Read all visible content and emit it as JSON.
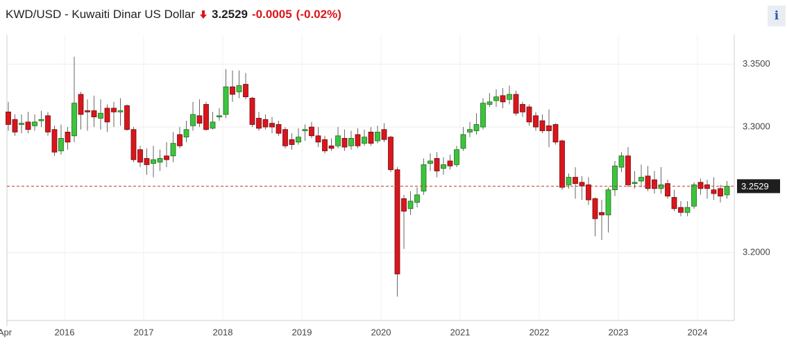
{
  "chart_data": {
    "type": "candlestick",
    "title": "KWD/USD - Kuwaiti Dinar US Dollar",
    "last_price": 3.2529,
    "change": -0.0005,
    "change_percent_label": "(-0.02%)",
    "info_button": "i",
    "up_color": "#3dc43d",
    "down_color": "#d9161c",
    "grid": true,
    "ylim": [
      3.146,
      3.3735
    ],
    "yticks": [
      {
        "value": 3.2,
        "label": "3.2000"
      },
      {
        "value": 3.3,
        "label": "3.3000"
      },
      {
        "value": 3.35,
        "label": "3.3500"
      }
    ],
    "categories": [
      "Apr",
      null,
      null,
      null,
      null,
      null,
      null,
      null,
      null,
      "2016",
      null,
      null,
      null,
      null,
      null,
      null,
      null,
      null,
      null,
      null,
      null,
      "2017",
      null,
      null,
      null,
      null,
      null,
      null,
      null,
      null,
      null,
      null,
      null,
      "2018",
      null,
      null,
      null,
      null,
      null,
      null,
      null,
      null,
      null,
      null,
      null,
      "2019",
      null,
      null,
      null,
      null,
      null,
      null,
      null,
      null,
      null,
      null,
      null,
      "2020",
      null,
      null,
      null,
      null,
      null,
      null,
      null,
      null,
      null,
      null,
      null,
      "2021",
      null,
      null,
      null,
      null,
      null,
      null,
      null,
      null,
      null,
      null,
      null,
      "2022",
      null,
      null,
      null,
      null,
      null,
      null,
      null,
      null,
      null,
      null,
      null,
      "2023",
      null,
      null,
      null,
      null,
      null,
      null,
      null,
      null,
      null,
      null,
      null,
      "2024",
      null,
      null,
      null,
      null
    ],
    "open": [
      3.312,
      3.306,
      3.302,
      3.304,
      3.301,
      3.305,
      3.309,
      3.298,
      3.281,
      3.296,
      3.293,
      3.326,
      3.313,
      3.313,
      3.307,
      3.315,
      3.315,
      3.312,
      3.317,
      3.298,
      3.282,
      3.275,
      3.271,
      3.272,
      3.277,
      3.277,
      3.294,
      3.292,
      3.301,
      3.309,
      3.318,
      3.299,
      3.308,
      3.31,
      3.332,
      3.328,
      3.334,
      3.323,
      3.307,
      3.306,
      3.303,
      3.302,
      3.298,
      3.29,
      3.288,
      3.297,
      3.3,
      3.293,
      3.29,
      3.285,
      3.285,
      3.291,
      3.285,
      3.294,
      3.287,
      3.296,
      3.289,
      3.298,
      3.292,
      3.266,
      3.243,
      3.235,
      3.24,
      3.249,
      3.271,
      3.275,
      3.267,
      3.273,
      3.27,
      3.283,
      3.296,
      3.297,
      3.3,
      3.318,
      3.321,
      3.325,
      3.322,
      3.326,
      3.318,
      3.316,
      3.309,
      3.305,
      3.301,
      3.302,
      3.289,
      3.254,
      3.26,
      3.256,
      3.254,
      3.243,
      3.232,
      3.23,
      3.25,
      3.268,
      3.277,
      3.255,
      3.257,
      3.261,
      3.258,
      3.251,
      3.255,
      3.244,
      3.236,
      3.232,
      3.237,
      3.256,
      3.254,
      3.25,
      3.251,
      3.246
    ],
    "high": [
      3.32,
      3.31,
      3.31,
      3.312,
      3.31,
      3.313,
      3.312,
      3.301,
      3.302,
      3.3,
      3.356,
      3.328,
      3.322,
      3.325,
      3.322,
      3.318,
      3.32,
      3.323,
      3.318,
      3.3,
      3.285,
      3.283,
      3.285,
      3.282,
      3.288,
      3.296,
      3.3,
      3.305,
      3.32,
      3.322,
      3.32,
      3.312,
      3.315,
      3.346,
      3.345,
      3.345,
      3.343,
      3.324,
      3.312,
      3.31,
      3.308,
      3.305,
      3.3,
      3.295,
      3.299,
      3.302,
      3.304,
      3.3,
      3.293,
      3.291,
      3.3,
      3.298,
      3.297,
      3.299,
      3.298,
      3.3,
      3.301,
      3.303,
      3.293,
      3.268,
      3.246,
      3.249,
      3.252,
      3.275,
      3.279,
      3.28,
      3.276,
      3.278,
      3.285,
      3.3,
      3.304,
      3.311,
      3.323,
      3.327,
      3.33,
      3.331,
      3.333,
      3.329,
      3.32,
      3.318,
      3.312,
      3.31,
      3.314,
      3.303,
      3.29,
      3.263,
      3.268,
      3.261,
      3.26,
      3.244,
      3.242,
      3.252,
      3.273,
      3.28,
      3.284,
      3.265,
      3.27,
      3.269,
      3.265,
      3.268,
      3.258,
      3.25,
      3.241,
      3.241,
      3.256,
      3.259,
      3.258,
      3.26,
      3.254,
      3.257
    ],
    "low": [
      3.297,
      3.293,
      3.295,
      3.295,
      3.297,
      3.3,
      3.293,
      3.277,
      3.278,
      3.282,
      3.288,
      3.298,
      3.297,
      3.3,
      3.298,
      3.296,
      3.3,
      3.301,
      3.297,
      3.272,
      3.268,
      3.262,
      3.26,
      3.265,
      3.268,
      3.272,
      3.283,
      3.288,
      3.297,
      3.3,
      3.297,
      3.298,
      3.305,
      3.307,
      3.32,
      3.323,
      3.322,
      3.3,
      3.297,
      3.298,
      3.295,
      3.293,
      3.283,
      3.282,
      3.286,
      3.289,
      3.291,
      3.284,
      3.279,
      3.281,
      3.283,
      3.281,
      3.282,
      3.283,
      3.285,
      3.285,
      3.287,
      3.288,
      3.264,
      3.165,
      3.203,
      3.23,
      3.236,
      3.246,
      3.265,
      3.26,
      3.262,
      3.266,
      3.268,
      3.281,
      3.292,
      3.294,
      3.298,
      3.316,
      3.316,
      3.315,
      3.318,
      3.309,
      3.308,
      3.301,
      3.297,
      3.295,
      3.284,
      3.286,
      3.25,
      3.251,
      3.243,
      3.242,
      3.238,
      3.213,
      3.21,
      3.216,
      3.245,
      3.264,
      3.252,
      3.251,
      3.252,
      3.249,
      3.247,
      3.247,
      3.243,
      3.233,
      3.229,
      3.229,
      3.235,
      3.246,
      3.243,
      3.242,
      3.24,
      3.243
    ],
    "close": [
      3.302,
      3.296,
      3.303,
      3.298,
      3.304,
      3.306,
      3.296,
      3.28,
      3.291,
      3.288,
      3.319,
      3.31,
      3.312,
      3.308,
      3.311,
      3.304,
      3.312,
      3.313,
      3.298,
      3.274,
      3.272,
      3.27,
      3.274,
      3.275,
      3.274,
      3.287,
      3.285,
      3.298,
      3.31,
      3.303,
      3.298,
      3.304,
      3.309,
      3.332,
      3.326,
      3.333,
      3.324,
      3.302,
      3.299,
      3.3,
      3.3,
      3.295,
      3.285,
      3.286,
      3.292,
      3.298,
      3.293,
      3.288,
      3.281,
      3.283,
      3.293,
      3.284,
      3.291,
      3.285,
      3.292,
      3.287,
      3.296,
      3.29,
      3.266,
      3.183,
      3.233,
      3.241,
      3.246,
      3.27,
      3.273,
      3.265,
      3.27,
      3.269,
      3.282,
      3.294,
      3.298,
      3.302,
      3.319,
      3.32,
      3.324,
      3.32,
      3.326,
      3.311,
      3.312,
      3.304,
      3.3,
      3.297,
      3.297,
      3.288,
      3.252,
      3.26,
      3.255,
      3.253,
      3.242,
      3.227,
      3.23,
      3.25,
      3.269,
      3.277,
      3.254,
      3.256,
      3.26,
      3.251,
      3.251,
      3.254,
      3.245,
      3.235,
      3.232,
      3.236,
      3.254,
      3.251,
      3.251,
      3.247,
      3.245,
      3.2529
    ]
  }
}
